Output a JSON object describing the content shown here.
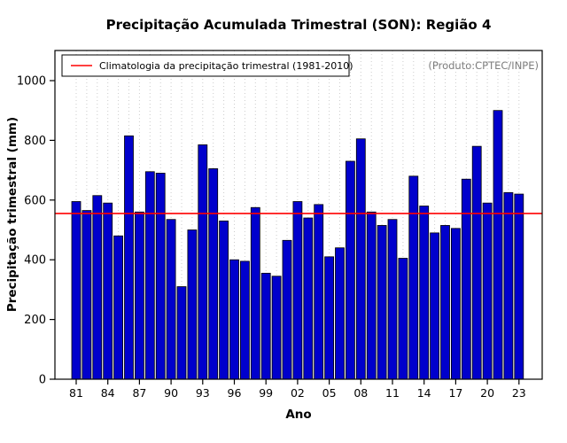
{
  "title": "Precipitação Acumulada Trimestral (SON): Região 4",
  "annotation": "(Produto:CPTEC/INPE)",
  "legend": {
    "label": "Climatologia da precipitação trimestral (1981-2010)",
    "line_color": "#ff0000"
  },
  "chart_data": {
    "type": "bar",
    "title": "Precipitação Acumulada Trimestral (SON): Região 4",
    "xlabel": "Ano",
    "ylabel": "Precipitação trimestral (mm)",
    "ylim": [
      0,
      1000
    ],
    "yticks": [
      0,
      200,
      400,
      600,
      800,
      1000
    ],
    "xtick_labels": [
      "81",
      "84",
      "87",
      "90",
      "93",
      "96",
      "99",
      "02",
      "05",
      "08",
      "11",
      "14",
      "17",
      "20",
      "23"
    ],
    "years": [
      1981,
      1982,
      1983,
      1984,
      1985,
      1986,
      1987,
      1988,
      1989,
      1990,
      1991,
      1992,
      1993,
      1994,
      1995,
      1996,
      1997,
      1998,
      1999,
      2000,
      2001,
      2002,
      2003,
      2004,
      2005,
      2006,
      2007,
      2008,
      2009,
      2010,
      2011,
      2012,
      2013,
      2014,
      2015,
      2016,
      2017,
      2018,
      2019,
      2020,
      2021,
      2022,
      2023
    ],
    "values": [
      595,
      565,
      615,
      590,
      480,
      815,
      560,
      695,
      690,
      535,
      310,
      500,
      785,
      705,
      530,
      400,
      395,
      575,
      355,
      345,
      465,
      595,
      540,
      585,
      410,
      440,
      730,
      805,
      560,
      515,
      535,
      405,
      680,
      580,
      490,
      515,
      505,
      670,
      780,
      590,
      900,
      625,
      620
    ],
    "climatology": 555,
    "bar_color": "#0000cc",
    "bar_border": "#000000",
    "line_color": "#ff0000",
    "grid": "dotted-vertical",
    "legend_position": "top-left"
  }
}
